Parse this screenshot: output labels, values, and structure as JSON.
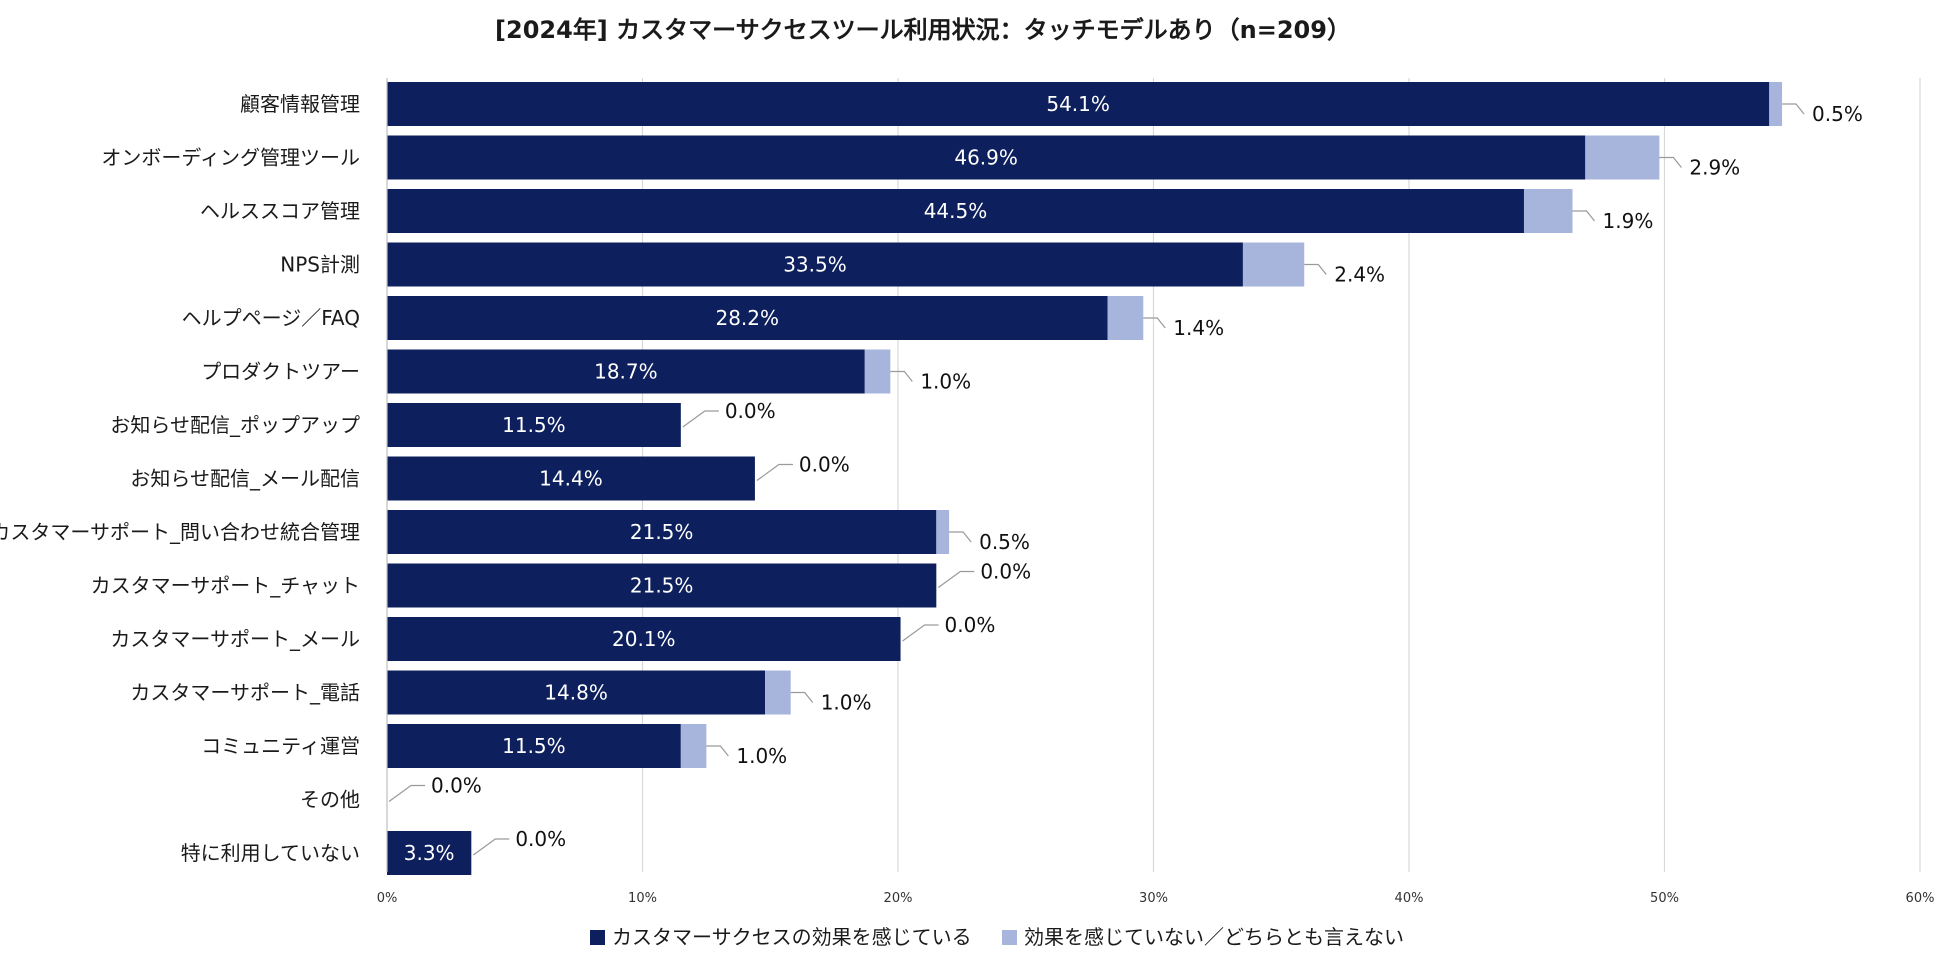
{
  "chart_data": {
    "type": "bar",
    "orientation": "horizontal",
    "stacked": true,
    "title": "[2024年] カスタマーサクセスツール利用状況：タッチモデルあり（n=209）",
    "categories": [
      "顧客情報管理",
      "オンボーディング管理ツール",
      "ヘルススコア管理",
      "NPS計測",
      "ヘルプページ／FAQ",
      "プロダクトツアー",
      "お知らせ配信_ポップアップ",
      "お知らせ配信_メール配信",
      "カスタマーサポート_問い合わせ統合管理",
      "カスタマーサポート_チャット",
      "カスタマーサポート_メール",
      "カスタマーサポート_電話",
      "コミュニティ運営",
      "その他",
      "特に利用していない"
    ],
    "series": [
      {
        "name": "カスタマーサクセスの効果を感じている",
        "color": "#0d1f5c",
        "values": [
          54.1,
          46.9,
          44.5,
          33.5,
          28.2,
          18.7,
          11.5,
          14.4,
          21.5,
          21.5,
          20.1,
          14.8,
          11.5,
          0.0,
          3.3
        ],
        "labels": [
          "54.1%",
          "46.9%",
          "44.5%",
          "33.5%",
          "28.2%",
          "18.7%",
          "11.5%",
          "14.4%",
          "21.5%",
          "21.5%",
          "20.1%",
          "14.8%",
          "11.5%",
          "",
          "3.3%"
        ]
      },
      {
        "name": "効果を感じていない／どちらとも言えない",
        "color": "#a7b4dc",
        "values": [
          0.5,
          2.9,
          1.9,
          2.4,
          1.4,
          1.0,
          0.0,
          0.0,
          0.5,
          0.0,
          0.0,
          1.0,
          1.0,
          0.0,
          0.0
        ],
        "labels": [
          "0.5%",
          "2.9%",
          "1.9%",
          "2.4%",
          "1.4%",
          "1.0%",
          "0.0%",
          "0.0%",
          "0.5%",
          "0.0%",
          "0.0%",
          "1.0%",
          "1.0%",
          "0.0%",
          "0.0%"
        ]
      }
    ],
    "xlim": [
      0,
      60
    ],
    "xticks": [
      0,
      10,
      20,
      30,
      40,
      50,
      60
    ],
    "xtick_labels": [
      "0%",
      "10%",
      "20%",
      "30%",
      "40%",
      "50%",
      "60%"
    ],
    "grid": true,
    "legend_position": "bottom-center",
    "xlabel": "",
    "ylabel": ""
  }
}
